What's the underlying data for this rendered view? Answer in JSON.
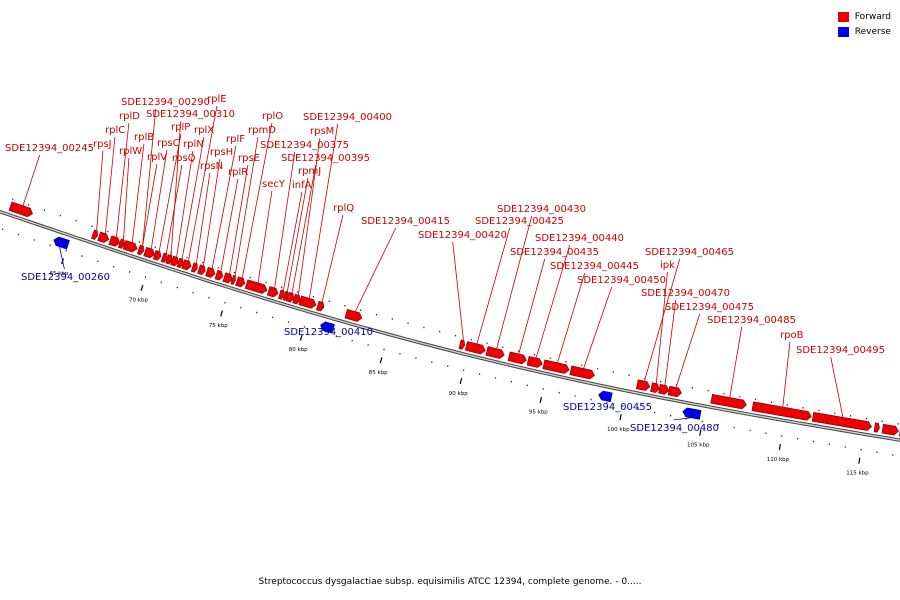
{
  "legend": [
    {
      "label": "Forward",
      "color": "#ee0000"
    },
    {
      "label": "Reverse",
      "color": "#0000ee"
    }
  ],
  "title": "Streptococcus dysgalactiae subsp. equisimilis ATCC 12394, complete genome. - 0.....",
  "colors": {
    "forward": "#ee0000",
    "reverse": "#0000ee",
    "backbone": "#888888",
    "label_forward": "#cc0000",
    "label_reverse": "#0000aa"
  },
  "scale": {
    "unit": "kbp",
    "major_ticks": [
      65,
      70,
      75,
      80,
      85,
      90,
      95,
      100,
      105,
      110,
      115
    ]
  },
  "features": [
    {
      "name": "SDE12394_00245",
      "strand": "forward",
      "start": 61.0,
      "end": 62.4
    },
    {
      "name": "rpsJ",
      "strand": "forward",
      "start": 66.2,
      "end": 66.5
    },
    {
      "name": "rplC",
      "strand": "forward",
      "start": 66.6,
      "end": 67.2
    },
    {
      "name": "rplD",
      "strand": "forward",
      "start": 67.3,
      "end": 67.9
    },
    {
      "name": "rplW",
      "strand": "forward",
      "start": 67.9,
      "end": 68.2
    },
    {
      "name": "rplB",
      "strand": "forward",
      "start": 68.2,
      "end": 69.0
    },
    {
      "name": "SDE12394_00290",
      "strand": "forward",
      "start": 69.1,
      "end": 69.4
    },
    {
      "name": "rpsC",
      "strand": "forward",
      "start": 69.5,
      "end": 70.1
    },
    {
      "name": "rplV",
      "strand": "forward",
      "start": 69.1,
      "end": 69.4
    },
    {
      "name": "rplP",
      "strand": "forward",
      "start": 70.1,
      "end": 70.5
    },
    {
      "name": "rpsQ",
      "strand": "forward",
      "start": 70.6,
      "end": 70.9
    },
    {
      "name": "SDE12394_00310",
      "strand": "forward",
      "start": 70.9,
      "end": 71.2
    },
    {
      "name": "rplN",
      "strand": "forward",
      "start": 71.2,
      "end": 71.6
    },
    {
      "name": "rplX",
      "strand": "forward",
      "start": 71.6,
      "end": 71.9
    },
    {
      "name": "rplE",
      "strand": "forward",
      "start": 71.9,
      "end": 72.4
    },
    {
      "name": "rpsN",
      "strand": "forward",
      "start": 72.5,
      "end": 72.8
    },
    {
      "name": "rpsH",
      "strand": "forward",
      "start": 72.9,
      "end": 73.3
    },
    {
      "name": "rplF",
      "strand": "forward",
      "start": 73.4,
      "end": 73.9
    },
    {
      "name": "rplR",
      "strand": "forward",
      "start": 74.0,
      "end": 74.4
    },
    {
      "name": "rpsE",
      "strand": "forward",
      "start": 74.5,
      "end": 75.0
    },
    {
      "name": "rpmD",
      "strand": "forward",
      "start": 75.0,
      "end": 75.2
    },
    {
      "name": "rplO",
      "strand": "forward",
      "start": 75.3,
      "end": 75.8
    },
    {
      "name": "secY",
      "strand": "forward",
      "start": 75.9,
      "end": 77.2
    },
    {
      "name": "SDE12394_00375",
      "strand": "forward",
      "start": 77.3,
      "end": 77.9
    },
    {
      "name": "infA",
      "strand": "forward",
      "start": 78.0,
      "end": 78.3
    },
    {
      "name": "rpmJ",
      "strand": "forward",
      "start": 78.3,
      "end": 78.5
    },
    {
      "name": "SDE12394_00395",
      "strand": "forward",
      "start": 78.5,
      "end": 78.9
    },
    {
      "name": "rpsM",
      "strand": "forward",
      "start": 78.9,
      "end": 79.3
    },
    {
      "name": "SDE12394_00400",
      "strand": "forward",
      "start": 79.3,
      "end": 80.3
    },
    {
      "name": "rplQ",
      "strand": "forward",
      "start": 80.4,
      "end": 80.8
    },
    {
      "name": "SDE12394_00415",
      "strand": "forward",
      "start": 82.2,
      "end": 83.2
    },
    {
      "name": "SDE12394_00420",
      "strand": "forward",
      "start": 89.4,
      "end": 89.7
    },
    {
      "name": "SDE12394_00425",
      "strand": "forward",
      "start": 89.8,
      "end": 91.0
    },
    {
      "name": "SDE12394_00430",
      "strand": "forward",
      "start": 91.1,
      "end": 92.2
    },
    {
      "name": "SDE12394_00435",
      "strand": "forward",
      "start": 92.5,
      "end": 93.6
    },
    {
      "name": "SDE12394_00440",
      "strand": "forward",
      "start": 93.7,
      "end": 94.6
    },
    {
      "name": "SDE12394_00445",
      "strand": "forward",
      "start": 94.7,
      "end": 96.3
    },
    {
      "name": "SDE12394_00450",
      "strand": "forward",
      "start": 96.4,
      "end": 97.9
    },
    {
      "name": "SDE12394_00465",
      "strand": "forward",
      "start": 100.6,
      "end": 101.4
    },
    {
      "name": "ipk",
      "strand": "forward",
      "start": 101.5,
      "end": 102.0
    },
    {
      "name": "SDE12394_00470",
      "strand": "forward",
      "start": 102.0,
      "end": 102.6
    },
    {
      "name": "SDE12394_00475",
      "strand": "forward",
      "start": 102.6,
      "end": 103.4
    },
    {
      "name": "SDE12394_00485",
      "strand": "forward",
      "start": 105.3,
      "end": 107.5
    },
    {
      "name": "rpoB",
      "strand": "forward",
      "start": 107.9,
      "end": 111.6
    },
    {
      "name": "SDE12394_00495",
      "strand": "forward",
      "start": 111.7,
      "end": 115.4
    },
    {
      "name": "",
      "strand": "forward",
      "start": 115.6,
      "end": 115.9
    },
    {
      "name": "",
      "strand": "forward",
      "start": 116.1,
      "end": 117.1
    },
    {
      "name": "",
      "strand": "forward",
      "start": 117.2,
      "end": 118.0
    },
    {
      "name": "SDE12394_00260",
      "strand": "reverse",
      "start": 64.1,
      "end": 65.0
    },
    {
      "name": "SDE12394_00410",
      "strand": "reverse",
      "start": 80.9,
      "end": 81.7
    },
    {
      "name": "SDE12394_00455",
      "strand": "reverse",
      "start": 98.4,
      "end": 99.2
    },
    {
      "name": "SDE12394_00480",
      "strand": "reverse",
      "start": 103.7,
      "end": 104.8
    }
  ]
}
